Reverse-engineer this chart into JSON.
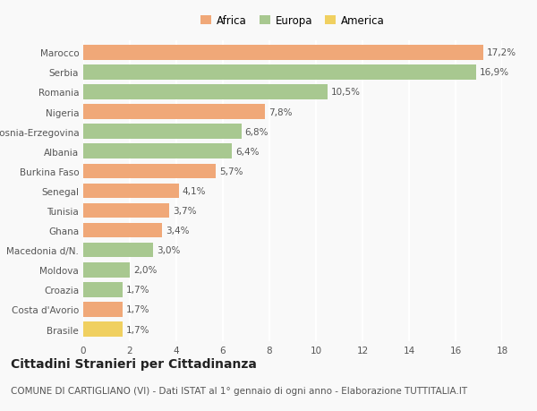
{
  "categories": [
    "Brasile",
    "Costa d'Avorio",
    "Croazia",
    "Moldova",
    "Macedonia d/N.",
    "Ghana",
    "Tunisia",
    "Senegal",
    "Burkina Faso",
    "Albania",
    "Bosnia-Erzegovina",
    "Nigeria",
    "Romania",
    "Serbia",
    "Marocco"
  ],
  "values": [
    1.7,
    1.7,
    1.7,
    2.0,
    3.0,
    3.4,
    3.7,
    4.1,
    5.7,
    6.4,
    6.8,
    7.8,
    10.5,
    16.9,
    17.2
  ],
  "labels": [
    "1,7%",
    "1,7%",
    "1,7%",
    "2,0%",
    "3,0%",
    "3,4%",
    "3,7%",
    "4,1%",
    "5,7%",
    "6,4%",
    "6,8%",
    "7,8%",
    "10,5%",
    "16,9%",
    "17,2%"
  ],
  "colors": [
    "#f0d060",
    "#f0a878",
    "#a8c890",
    "#a8c890",
    "#a8c890",
    "#f0a878",
    "#f0a878",
    "#f0a878",
    "#f0a878",
    "#a8c890",
    "#a8c890",
    "#f0a878",
    "#a8c890",
    "#a8c890",
    "#f0a878"
  ],
  "legend_labels": [
    "Africa",
    "Europa",
    "America"
  ],
  "legend_colors": [
    "#f0a878",
    "#a8c890",
    "#f0d060"
  ],
  "title": "Cittadini Stranieri per Cittadinanza",
  "subtitle": "COMUNE DI CARTIGLIANO (VI) - Dati ISTAT al 1° gennaio di ogni anno - Elaborazione TUTTITALIA.IT",
  "xlim": [
    0,
    18
  ],
  "xticks": [
    0,
    2,
    4,
    6,
    8,
    10,
    12,
    14,
    16,
    18
  ],
  "bar_height": 0.75,
  "background_color": "#f9f9f9",
  "grid_color": "#ffffff",
  "title_fontsize": 10,
  "subtitle_fontsize": 7.5,
  "tick_fontsize": 7.5,
  "label_fontsize": 7.5
}
